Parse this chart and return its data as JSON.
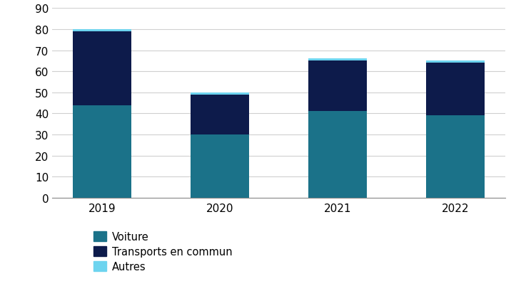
{
  "years": [
    "2019",
    "2020",
    "2021",
    "2022"
  ],
  "voiture": [
    44,
    30,
    41,
    39
  ],
  "transports_en_commun": [
    35,
    19,
    24,
    25
  ],
  "autres": [
    1,
    1,
    1,
    1
  ],
  "color_voiture": "#1b7289",
  "color_transports": "#0d1b4b",
  "color_autres": "#6dd4ef",
  "ylim": [
    0,
    90
  ],
  "yticks": [
    0,
    10,
    20,
    30,
    40,
    50,
    60,
    70,
    80,
    90
  ],
  "legend_labels": [
    "Voiture",
    "Transports en commun",
    "Autres"
  ],
  "bar_width": 0.5,
  "background_color": "#ffffff",
  "grid_color": "#d0d0d0"
}
